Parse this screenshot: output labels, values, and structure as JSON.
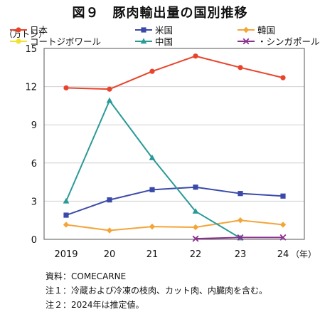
{
  "title": "図９　豚肉輸出量の国別推移",
  "chart_data": {
    "type": "line",
    "y_unit_label": "（万トン）",
    "x_unit_label": "（年）",
    "categories": [
      "2019",
      "20",
      "21",
      "22",
      "23",
      "24"
    ],
    "ylim": [
      0,
      15
    ],
    "yticks": [
      0,
      3,
      6,
      9,
      12,
      15
    ],
    "grid": "horizontal",
    "legend_position": "top",
    "series": [
      {
        "name": "日本",
        "color": "#e8442c",
        "marker": "circle",
        "values": [
          11.9,
          11.8,
          13.2,
          14.4,
          13.5,
          12.7
        ]
      },
      {
        "name": "米国",
        "color": "#3b4aa8",
        "marker": "square",
        "values": [
          1.9,
          3.1,
          3.9,
          4.1,
          3.6,
          3.4
        ]
      },
      {
        "name": "韓国",
        "color": "#f3a53a",
        "marker": "diamond",
        "values": [
          1.15,
          0.7,
          1.0,
          0.95,
          1.5,
          1.15
        ]
      },
      {
        "name": "コートジボワール",
        "color": "#f1e22e",
        "marker": "circle",
        "values": [
          null,
          null,
          null,
          null,
          null,
          null
        ]
      },
      {
        "name": "中国",
        "color": "#2a9a98",
        "marker": "triangle",
        "values": [
          3.0,
          10.9,
          6.4,
          2.2,
          0.1,
          null
        ]
      },
      {
        "name": "シンガポール",
        "color": "#8a2f8e",
        "marker": "x",
        "values": [
          null,
          null,
          null,
          0.05,
          0.15,
          0.15
        ]
      }
    ]
  },
  "notes": {
    "source": "資料：COMECARNE",
    "note1": "注１：冷蔵および冷凍の枝肉、カット肉、内臓肉を含む。",
    "note2": "注２：2024年は推定値。"
  }
}
